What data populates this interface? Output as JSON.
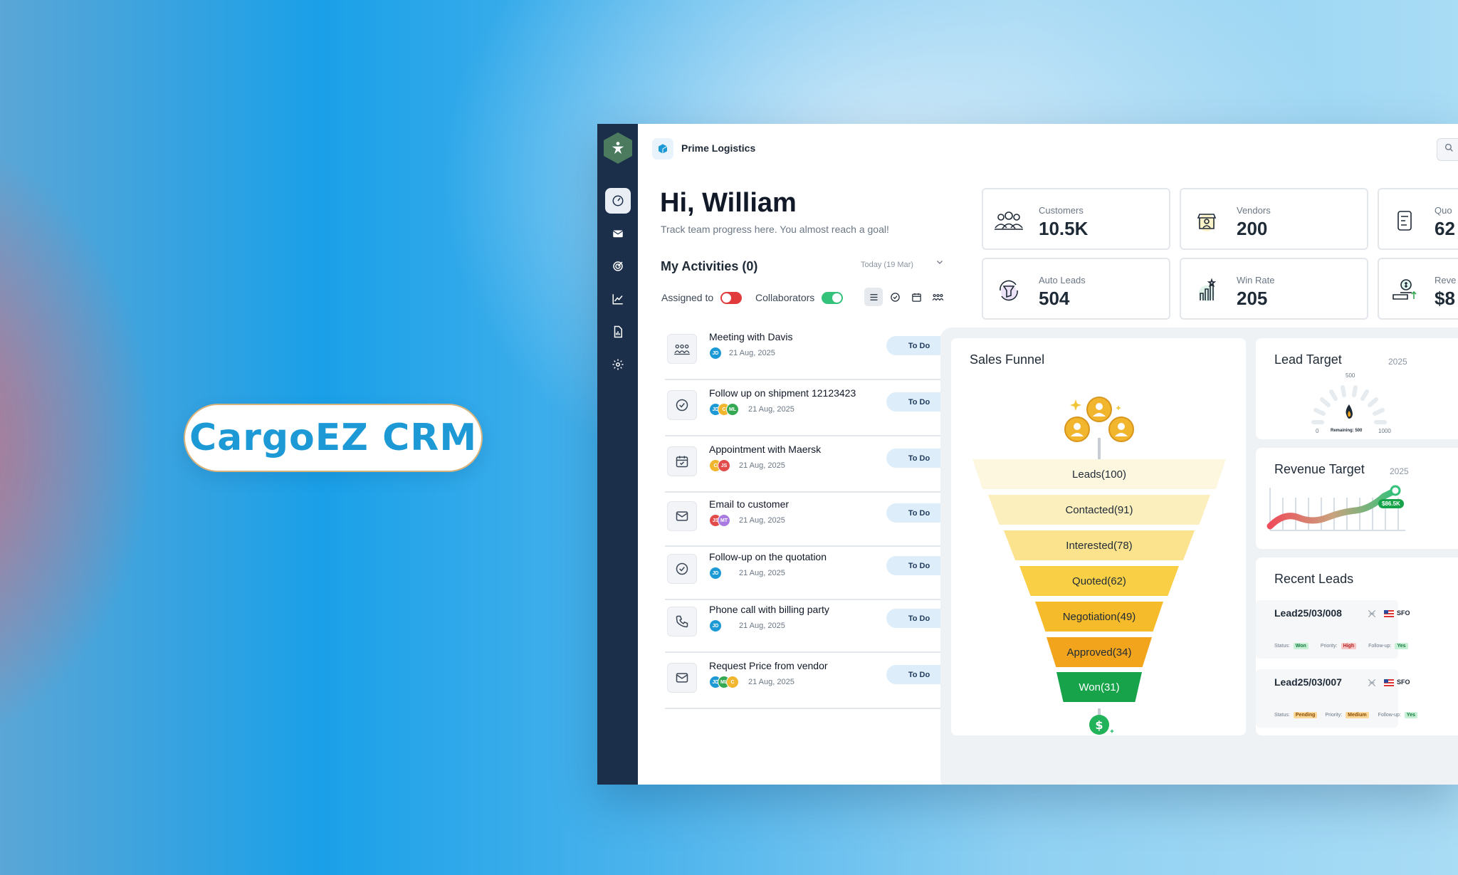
{
  "hero": {
    "title": "CargoEZ CRM"
  },
  "app": {
    "brand": "Prime Logistics",
    "greeting": "Hi, William",
    "greeting_sub": "Track team progress here. You almost reach a goal!",
    "activities": {
      "title": "My Activities (0)",
      "date_filter": "Today (19 Mar)",
      "assigned_label": "Assigned to",
      "collaborators_label": "Collaborators",
      "items": [
        {
          "name": "Meeting with Davis",
          "date": "21 Aug, 2025",
          "status": "To Do",
          "icon": "meeting-icon",
          "avatars": [
            "JD"
          ]
        },
        {
          "name": "Follow up on shipment 12123423",
          "date": "21 Aug, 2025",
          "status": "To Do",
          "icon": "check-circle-icon",
          "avatars": [
            "JD",
            "C",
            "ML"
          ]
        },
        {
          "name": "Appointment with Maersk",
          "date": "21 Aug, 2025",
          "status": "To Do",
          "icon": "calendar-icon",
          "avatars": [
            "C",
            "JS"
          ]
        },
        {
          "name": "Email to customer",
          "date": "21 Aug, 2025",
          "status": "To Do",
          "icon": "mail-icon",
          "avatars": [
            "JS",
            "MT"
          ]
        },
        {
          "name": "Follow-up on the quotation",
          "date": "21 Aug, 2025",
          "status": "To Do",
          "icon": "check-circle-icon",
          "avatars": [
            "JD"
          ]
        },
        {
          "name": "Phone call with billing party",
          "date": "21 Aug, 2025",
          "status": "To Do",
          "icon": "phone-icon",
          "avatars": [
            "JD"
          ]
        },
        {
          "name": "Request Price from vendor",
          "date": "21 Aug, 2025",
          "status": "To Do",
          "icon": "mail-icon",
          "avatars": [
            "JD",
            "ML",
            "C"
          ]
        }
      ]
    },
    "stats": [
      {
        "label": "Customers",
        "value": "10.5K",
        "icon": "customers-icon"
      },
      {
        "label": "Vendors",
        "value": "200",
        "icon": "vendors-icon"
      },
      {
        "label": "Quo",
        "value": "62",
        "icon": "quotes-icon"
      },
      {
        "label": "Auto Leads",
        "value": "504",
        "icon": "auto-leads-icon"
      },
      {
        "label": "Win Rate",
        "value": "205",
        "icon": "win-rate-icon"
      },
      {
        "label": "Reve",
        "value": "$8",
        "icon": "revenue-icon"
      }
    ],
    "funnel": {
      "title": "Sales Funnel",
      "stages": [
        "Leads(100)",
        "Contacted(91)",
        "Interested(78)",
        "Quoted(62)",
        "Negotiation(49)",
        "Approved(34)",
        "Won(31)"
      ]
    },
    "lead_target": {
      "title": "Lead Target",
      "year": "2025",
      "max_label": "500",
      "min": "0",
      "max": "1000",
      "remaining": "Remaining: 500"
    },
    "revenue_target": {
      "title": "Revenue Target",
      "year": "2025",
      "value": "$86.5K"
    },
    "recent_leads": {
      "title": "Recent Leads",
      "items": [
        {
          "id": "Lead25/03/008",
          "origin": "SFO",
          "status_label": "Status:",
          "status": "Won",
          "priority_label": "Priority:",
          "priority": "High",
          "followup_label": "Follow-up:",
          "followup": "Yes"
        },
        {
          "id": "Lead25/03/007",
          "origin": "SFO",
          "status_label": "Status:",
          "status": "Pending",
          "priority_label": "Priority:",
          "priority": "Medium",
          "followup_label": "Follow-up:",
          "followup": "Yes"
        }
      ]
    }
  }
}
